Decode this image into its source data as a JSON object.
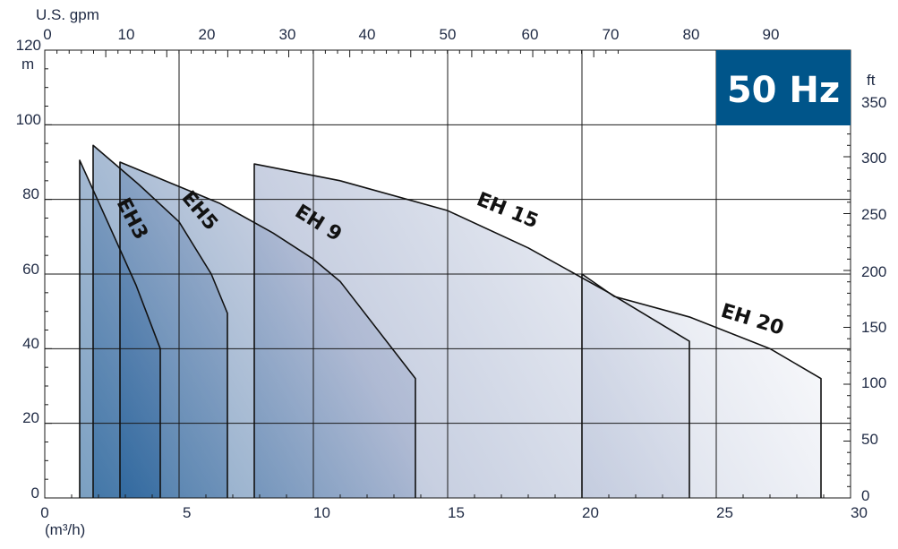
{
  "chart_data": {
    "type": "area",
    "badge": {
      "label": "50 Hz",
      "color": "#00558a"
    },
    "x_axis": {
      "unit": "(m³/h)",
      "ticks": [
        "0",
        "5",
        "10",
        "15",
        "20",
        "25",
        "30"
      ],
      "range": [
        0,
        30
      ]
    },
    "x_top_axis": {
      "unit": "U.S. gpm",
      "ticks": [
        "0",
        "10",
        "20",
        "30",
        "40",
        "50",
        "60",
        "70",
        "80",
        "90"
      ],
      "range": [
        0,
        132.1
      ]
    },
    "y_axis": {
      "unit": "m",
      "ticks": [
        "0",
        "20",
        "40",
        "60",
        "80",
        "100",
        "120"
      ],
      "range": [
        0,
        120
      ]
    },
    "y_right_axis": {
      "unit": "ft",
      "ticks": [
        "0",
        "50",
        "100",
        "150",
        "200",
        "250",
        "300",
        "350"
      ],
      "range": [
        0,
        393.7
      ]
    },
    "grid": true,
    "fill_colors": {
      "dark": "#0a4f8e",
      "light": "#eef0f6",
      "curve": "#111111",
      "grid": "#1a1a1a",
      "text": "#1f2a44"
    },
    "series": [
      {
        "name": "EH20",
        "label": "EH 20",
        "points": [
          [
            20.0,
            60.0
          ],
          [
            21.2,
            54.0
          ],
          [
            24.0,
            48.5
          ],
          [
            27.0,
            40.0
          ],
          [
            28.9,
            32.0
          ]
        ],
        "q_min": 20.0,
        "q_max": 28.9
      },
      {
        "name": "EH15",
        "label": "EH 15",
        "points": [
          [
            7.8,
            76.0
          ],
          [
            7.8,
            89.5
          ],
          [
            11.0,
            85.0
          ],
          [
            15.0,
            77.0
          ],
          [
            18.0,
            67.0
          ],
          [
            21.0,
            55.0
          ],
          [
            24.0,
            42.0
          ]
        ],
        "q_min": 7.8,
        "q_max": 24.0
      },
      {
        "name": "EH9",
        "label": "EH 9",
        "points": [
          [
            2.8,
            90.0
          ],
          [
            6.5,
            79.0
          ],
          [
            8.5,
            71.0
          ],
          [
            10.0,
            64.0
          ],
          [
            11.0,
            58.0
          ],
          [
            13.8,
            32.0
          ]
        ],
        "q_min": 2.8,
        "q_max": 13.8
      },
      {
        "name": "EH5",
        "label": "EH5",
        "points": [
          [
            1.8,
            94.5
          ],
          [
            3.5,
            84.0
          ],
          [
            5.0,
            74.0
          ],
          [
            6.2,
            60.0
          ],
          [
            6.8,
            49.5
          ]
        ],
        "q_min": 1.8,
        "q_max": 6.8
      },
      {
        "name": "EH3",
        "label": "EH3",
        "points": [
          [
            1.3,
            90.5
          ],
          [
            2.4,
            73.0
          ],
          [
            3.4,
            57.0
          ],
          [
            4.3,
            40.0
          ]
        ],
        "q_min": 1.3,
        "q_max": 4.3
      }
    ]
  }
}
